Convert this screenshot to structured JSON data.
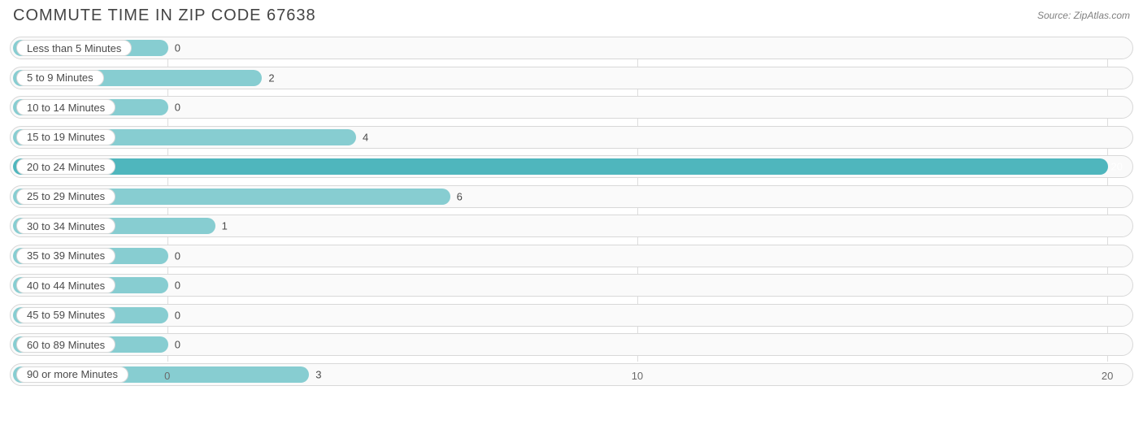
{
  "title": "COMMUTE TIME IN ZIP CODE 67638",
  "source": "Source: ZipAtlas.com",
  "chart": {
    "type": "bar-horizontal",
    "background_color": "#ffffff",
    "row_border_color": "#d8d8d8",
    "row_bg_color": "#fafafa",
    "bar_color_light": "#87cdd1",
    "bar_color_dark": "#4fb6bd",
    "value_text_dark": "#4a4a4a",
    "value_text_light": "#ffffff",
    "pill_bg": "#ffffff",
    "pill_border": "#d8d8d8",
    "grid_color": "#dddddd",
    "label_fontsize": 13,
    "title_fontsize": 20,
    "title_color": "#444444",
    "source_color": "#808080",
    "xmin": -3.3,
    "xmax": 20.5,
    "xticks": [
      0,
      10,
      20
    ],
    "categories": [
      {
        "label": "Less than 5 Minutes",
        "value": 0
      },
      {
        "label": "5 to 9 Minutes",
        "value": 2
      },
      {
        "label": "10 to 14 Minutes",
        "value": 0
      },
      {
        "label": "15 to 19 Minutes",
        "value": 4
      },
      {
        "label": "20 to 24 Minutes",
        "value": 20
      },
      {
        "label": "25 to 29 Minutes",
        "value": 6
      },
      {
        "label": "30 to 34 Minutes",
        "value": 1
      },
      {
        "label": "35 to 39 Minutes",
        "value": 0
      },
      {
        "label": "40 to 44 Minutes",
        "value": 0
      },
      {
        "label": "45 to 59 Minutes",
        "value": 0
      },
      {
        "label": "60 to 89 Minutes",
        "value": 0
      },
      {
        "label": "90 or more Minutes",
        "value": 3
      }
    ]
  }
}
